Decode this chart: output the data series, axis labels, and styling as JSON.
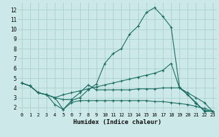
{
  "bg_color": "#cce8e8",
  "grid_color": "#aacfcf",
  "line_color": "#1a6b60",
  "xlabel": "Humidex (Indice chaleur)",
  "xlim": [
    -0.5,
    23.5
  ],
  "ylim": [
    1.5,
    12.7
  ],
  "xticks": [
    0,
    1,
    2,
    3,
    4,
    5,
    6,
    7,
    8,
    9,
    10,
    11,
    12,
    13,
    14,
    15,
    16,
    17,
    18,
    19,
    20,
    21,
    22,
    23
  ],
  "yticks": [
    2,
    3,
    4,
    5,
    6,
    7,
    8,
    9,
    10,
    11,
    12
  ],
  "line1_x": [
    0,
    1,
    2,
    3,
    4,
    5,
    6,
    7,
    8,
    9,
    10,
    11,
    12,
    13,
    14,
    15,
    16,
    17,
    18,
    19,
    20,
    21,
    22,
    23
  ],
  "line1_y": [
    4.5,
    4.2,
    3.5,
    3.3,
    3.0,
    1.8,
    2.7,
    3.0,
    3.8,
    4.4,
    6.5,
    7.5,
    8.0,
    9.5,
    10.3,
    11.7,
    12.2,
    11.3,
    10.2,
    4.1,
    3.3,
    2.4,
    1.7,
    1.6
  ],
  "line2_x": [
    0,
    1,
    2,
    3,
    4,
    5,
    6,
    7,
    8,
    9,
    10,
    11,
    12,
    13,
    14,
    15,
    16,
    17,
    18,
    19,
    20,
    21,
    22,
    23
  ],
  "line2_y": [
    4.5,
    4.2,
    3.5,
    3.3,
    3.0,
    3.3,
    3.5,
    3.7,
    3.9,
    4.1,
    4.3,
    4.5,
    4.7,
    4.9,
    5.1,
    5.3,
    5.5,
    5.8,
    6.5,
    4.0,
    3.5,
    3.0,
    2.5,
    1.6
  ],
  "line3_x": [
    0,
    1,
    2,
    3,
    4,
    5,
    6,
    7,
    8,
    9,
    10,
    11,
    12,
    13,
    14,
    15,
    16,
    17,
    18,
    19,
    20,
    21,
    22,
    23
  ],
  "line3_y": [
    4.5,
    4.2,
    3.5,
    3.3,
    3.0,
    2.8,
    2.8,
    3.5,
    4.3,
    3.8,
    3.8,
    3.8,
    3.8,
    3.8,
    3.9,
    3.9,
    3.9,
    4.0,
    4.0,
    4.0,
    3.3,
    2.5,
    1.6,
    1.6
  ],
  "line4_x": [
    0,
    1,
    2,
    3,
    4,
    5,
    6,
    7,
    8,
    9,
    10,
    11,
    12,
    13,
    14,
    15,
    16,
    17,
    18,
    19,
    20,
    21,
    22,
    23
  ],
  "line4_y": [
    4.5,
    4.2,
    3.5,
    3.3,
    2.3,
    1.8,
    2.5,
    2.7,
    2.7,
    2.7,
    2.7,
    2.7,
    2.7,
    2.7,
    2.7,
    2.7,
    2.6,
    2.6,
    2.5,
    2.4,
    2.3,
    2.1,
    1.9,
    1.6
  ]
}
